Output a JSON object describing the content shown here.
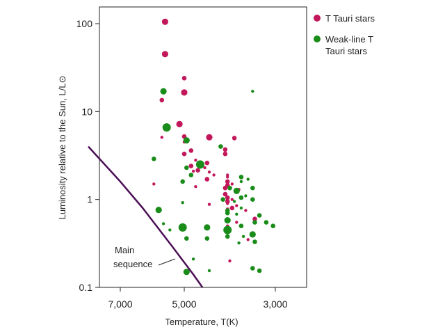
{
  "chart_data": {
    "type": "scatter",
    "title": "",
    "xlabel": "Temperature, T(K)",
    "ylabel": "Luminosity relative to the Sun, L/L⊙",
    "x_reversed": true,
    "x_ticks": [
      7000,
      5000,
      3000
    ],
    "x_tick_labels": [
      "7,000",
      "5,000",
      "3,000"
    ],
    "xlim": [
      8000,
      2000
    ],
    "y_scale": "log",
    "y_ticks": [
      100,
      10,
      1,
      0.1
    ],
    "y_tick_labels": [
      "100",
      "10",
      "1",
      "0.1"
    ],
    "ylim": [
      0.1,
      200
    ],
    "legend_position": "top-right",
    "colors": {
      "t_tauri": "#c2185b",
      "weak_line": "#1a8c1a",
      "main_sequence": "#4a0e55"
    },
    "series": [
      {
        "name": "T Tauri stars",
        "color": "#c2185b",
        "points": [
          {
            "x": 5600,
            "y": 105,
            "s": "m"
          },
          {
            "x": 5600,
            "y": 45,
            "s": "m"
          },
          {
            "x": 5000,
            "y": 24,
            "s": "s"
          },
          {
            "x": 5000,
            "y": 16.5,
            "s": "m"
          },
          {
            "x": 5700,
            "y": 13.5,
            "s": "s"
          },
          {
            "x": 5150,
            "y": 7.2,
            "s": "m"
          },
          {
            "x": 5700,
            "y": 5.1,
            "s": "xs"
          },
          {
            "x": 5000,
            "y": 5.2,
            "s": "s"
          },
          {
            "x": 5000,
            "y": 4.5,
            "s": "xs"
          },
          {
            "x": 4450,
            "y": 5.1,
            "s": "m"
          },
          {
            "x": 3900,
            "y": 5,
            "s": "s"
          },
          {
            "x": 4850,
            "y": 3.6,
            "s": "s"
          },
          {
            "x": 5000,
            "y": 3.3,
            "s": "s"
          },
          {
            "x": 4100,
            "y": 3.7,
            "s": "s"
          },
          {
            "x": 4100,
            "y": 3.3,
            "s": "s"
          },
          {
            "x": 4750,
            "y": 2.8,
            "s": "xs"
          },
          {
            "x": 4500,
            "y": 2.6,
            "s": "s"
          },
          {
            "x": 4850,
            "y": 2.4,
            "s": "s"
          },
          {
            "x": 4550,
            "y": 2.3,
            "s": "xs"
          },
          {
            "x": 4700,
            "y": 2.15,
            "s": "s"
          },
          {
            "x": 4800,
            "y": 2.1,
            "s": "xs"
          },
          {
            "x": 4450,
            "y": 2.05,
            "s": "xs"
          },
          {
            "x": 4350,
            "y": 1.9,
            "s": "xs"
          },
          {
            "x": 4050,
            "y": 1.9,
            "s": "xs"
          },
          {
            "x": 4050,
            "y": 1.8,
            "s": "xs"
          },
          {
            "x": 4500,
            "y": 1.7,
            "s": "s"
          },
          {
            "x": 4050,
            "y": 1.6,
            "s": "s"
          },
          {
            "x": 3950,
            "y": 1.5,
            "s": "xs"
          },
          {
            "x": 4050,
            "y": 1.45,
            "s": "s"
          },
          {
            "x": 4750,
            "y": 1.4,
            "s": "xs"
          },
          {
            "x": 4100,
            "y": 1.35,
            "s": "s"
          },
          {
            "x": 5950,
            "y": 1.5,
            "s": "xs"
          },
          {
            "x": 3800,
            "y": 1.3,
            "s": "xs"
          },
          {
            "x": 4100,
            "y": 1.15,
            "s": "s"
          },
          {
            "x": 4050,
            "y": 1.05,
            "s": "s"
          },
          {
            "x": 4050,
            "y": 1.0,
            "s": "xs"
          },
          {
            "x": 3950,
            "y": 1.0,
            "s": "xs"
          },
          {
            "x": 4050,
            "y": 0.95,
            "s": "s"
          },
          {
            "x": 4050,
            "y": 0.9,
            "s": "xs"
          },
          {
            "x": 4450,
            "y": 0.88,
            "s": "xs"
          },
          {
            "x": 3850,
            "y": 0.85,
            "s": "xs"
          },
          {
            "x": 3950,
            "y": 0.8,
            "s": "s"
          },
          {
            "x": 4050,
            "y": 0.78,
            "s": "xs"
          },
          {
            "x": 3650,
            "y": 0.75,
            "s": "xs"
          },
          {
            "x": 3450,
            "y": 0.6,
            "s": "s"
          },
          {
            "x": 3850,
            "y": 0.55,
            "s": "xs"
          },
          {
            "x": 4050,
            "y": 0.5,
            "s": "xs"
          },
          {
            "x": 3600,
            "y": 0.35,
            "s": "xs"
          },
          {
            "x": 4000,
            "y": 0.2,
            "s": "xs"
          }
        ]
      },
      {
        "name": "Weak-line T Tauri stars",
        "color": "#1a8c1a",
        "points": [
          {
            "x": 5650,
            "y": 17,
            "s": "m"
          },
          {
            "x": 5550,
            "y": 6.6,
            "s": "l"
          },
          {
            "x": 3500,
            "y": 17,
            "s": "xs"
          },
          {
            "x": 4950,
            "y": 4.7,
            "s": "m"
          },
          {
            "x": 5950,
            "y": 2.9,
            "s": "s"
          },
          {
            "x": 4200,
            "y": 4.0,
            "s": "s"
          },
          {
            "x": 4650,
            "y": 2.5,
            "s": "l"
          },
          {
            "x": 4950,
            "y": 2.3,
            "s": "s"
          },
          {
            "x": 4850,
            "y": 1.9,
            "s": "s"
          },
          {
            "x": 5050,
            "y": 1.6,
            "s": "s"
          },
          {
            "x": 3750,
            "y": 1.8,
            "s": "s"
          },
          {
            "x": 3600,
            "y": 1.7,
            "s": "xs"
          },
          {
            "x": 3750,
            "y": 1.6,
            "s": "xs"
          },
          {
            "x": 4000,
            "y": 1.35,
            "s": "s"
          },
          {
            "x": 3850,
            "y": 1.25,
            "s": "m"
          },
          {
            "x": 3500,
            "y": 1.35,
            "s": "s"
          },
          {
            "x": 3650,
            "y": 1.1,
            "s": "xs"
          },
          {
            "x": 3750,
            "y": 1.05,
            "s": "s"
          },
          {
            "x": 4150,
            "y": 1.0,
            "s": "s"
          },
          {
            "x": 3500,
            "y": 1.0,
            "s": "s"
          },
          {
            "x": 3900,
            "y": 0.95,
            "s": "xs"
          },
          {
            "x": 5050,
            "y": 0.92,
            "s": "xs"
          },
          {
            "x": 3750,
            "y": 0.8,
            "s": "xs"
          },
          {
            "x": 5800,
            "y": 0.76,
            "s": "m"
          },
          {
            "x": 4050,
            "y": 0.75,
            "s": "s"
          },
          {
            "x": 4050,
            "y": 0.7,
            "s": "s"
          },
          {
            "x": 3850,
            "y": 0.68,
            "s": "xs"
          },
          {
            "x": 3350,
            "y": 0.66,
            "s": "s"
          },
          {
            "x": 4050,
            "y": 0.58,
            "s": "m"
          },
          {
            "x": 3450,
            "y": 0.55,
            "s": "s"
          },
          {
            "x": 3200,
            "y": 0.55,
            "s": "s"
          },
          {
            "x": 3750,
            "y": 0.5,
            "s": "s"
          },
          {
            "x": 3050,
            "y": 0.5,
            "s": "s"
          },
          {
            "x": 5050,
            "y": 0.48,
            "s": "l"
          },
          {
            "x": 4500,
            "y": 0.48,
            "s": "m"
          },
          {
            "x": 4050,
            "y": 0.45,
            "s": "l"
          },
          {
            "x": 5650,
            "y": 0.53,
            "s": "xs"
          },
          {
            "x": 5450,
            "y": 0.45,
            "s": "xs"
          },
          {
            "x": 3500,
            "y": 0.4,
            "s": "m"
          },
          {
            "x": 4050,
            "y": 0.38,
            "s": "s"
          },
          {
            "x": 4950,
            "y": 0.36,
            "s": "s"
          },
          {
            "x": 4500,
            "y": 0.36,
            "s": "s"
          },
          {
            "x": 3700,
            "y": 0.38,
            "s": "xs"
          },
          {
            "x": 3450,
            "y": 0.33,
            "s": "s"
          },
          {
            "x": 3800,
            "y": 0.32,
            "s": "xs"
          },
          {
            "x": 4800,
            "y": 0.21,
            "s": "xs"
          },
          {
            "x": 3500,
            "y": 0.165,
            "s": "s"
          },
          {
            "x": 3350,
            "y": 0.155,
            "s": "s"
          },
          {
            "x": 4450,
            "y": 0.155,
            "s": "xs"
          },
          {
            "x": 4950,
            "y": 0.15,
            "s": "m"
          }
        ]
      }
    ],
    "main_sequence": {
      "label_lines": [
        "Main",
        "sequence"
      ],
      "points": [
        [
          8000,
          4.0
        ],
        [
          7000,
          1.6
        ],
        [
          6300,
          0.8
        ],
        [
          5400,
          0.3
        ],
        [
          4800,
          0.14
        ],
        [
          4600,
          0.1
        ]
      ]
    }
  }
}
